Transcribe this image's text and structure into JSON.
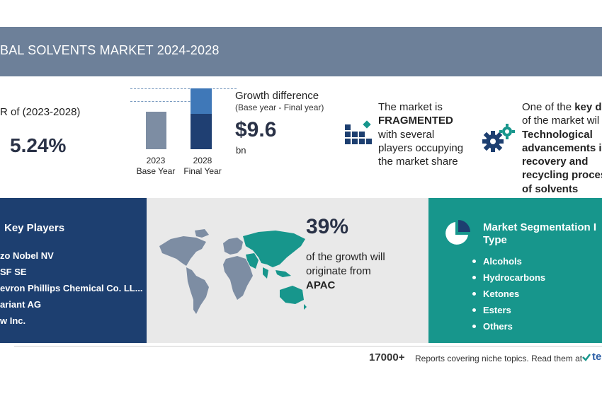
{
  "header": {
    "title": "BAL SOLVENTS MARKET 2024-2028"
  },
  "cagr": {
    "label": "R of (2023-2028)",
    "value": "5.24%"
  },
  "growth_chart": {
    "bars": [
      {
        "year": "2023",
        "caption": "Base Year"
      },
      {
        "year": "2028",
        "caption": "Final Year"
      }
    ],
    "title": "Growth difference",
    "subtitle": "(Base year - Final year)",
    "value": "$9.6",
    "unit": "bn"
  },
  "fragmented": {
    "lines": [
      "The market is",
      "FRAGMENTED",
      "with several",
      "players occupying",
      "the market share"
    ]
  },
  "driver": {
    "lines": [
      "One of the key d",
      "of the market wil",
      "Technological",
      "advancements i",
      "recovery and",
      "recycling proces",
      "of solvents"
    ]
  },
  "key_players": {
    "title": "Key Players",
    "items": [
      "zo Nobel NV",
      "SF SE",
      "evron Phillips Chemical Co. LL...",
      "ariant AG",
      "w Inc."
    ]
  },
  "region": {
    "percent": "39%",
    "lines": [
      "of the growth will",
      "originate from"
    ],
    "name": "APAC"
  },
  "segmentation": {
    "title_line1": "Market Segmentation I",
    "title_line2": "Type",
    "items": [
      "Alcohols",
      "Hydrocarbons",
      "Ketones",
      "Esters",
      "Others"
    ]
  },
  "footer": {
    "count": "17000+",
    "text": "Reports covering niche topics. Read them at",
    "brand": "te"
  },
  "colors": {
    "header": "#6d8099",
    "navy": "#1d3f70",
    "teal": "#17968c",
    "bar_base": "#7d8da3",
    "bar_growth": "#3f78b8"
  }
}
